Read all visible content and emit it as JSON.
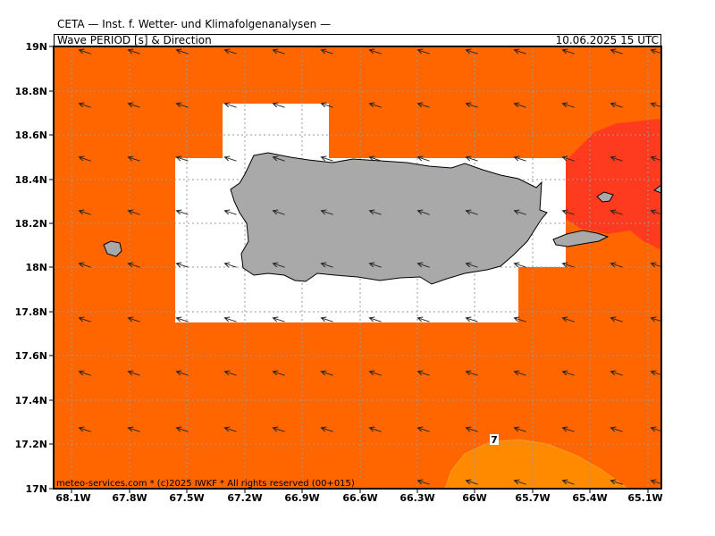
{
  "header": {
    "title": "CETA — Inst. f. Wetter- und Klimafolgenanalysen —",
    "parameter": "Wave PERIOD [s] & Direction",
    "datetime": "10.06.2025 15 UTC"
  },
  "map": {
    "lat_labels": [
      "19N",
      "18.8N",
      "18.6N",
      "18.4N",
      "18.2N",
      "18N",
      "17.8N",
      "17.6N",
      "17.4N",
      "17.2N",
      "17N"
    ],
    "lon_labels": [
      "68.1W",
      "67.8W",
      "67.5W",
      "67.2W",
      "66.9W",
      "66.6W",
      "66.3W",
      "66W",
      "65.7W",
      "65.4W",
      "65.1W"
    ],
    "contour_label": "7",
    "copyright": "meteo-services.com * (c)2025 IWKF * All rights reserved (00+015)",
    "colors": {
      "sea_main": "#ff6600",
      "sea_high": "#ff3b1f",
      "sea_low": "#ff8a00",
      "land": "#a9a9a9",
      "no_data": "#ffffff",
      "grid": "#9a9a9a"
    },
    "wave_direction": "from east-southeast (arrows pointing west-northwest)"
  }
}
